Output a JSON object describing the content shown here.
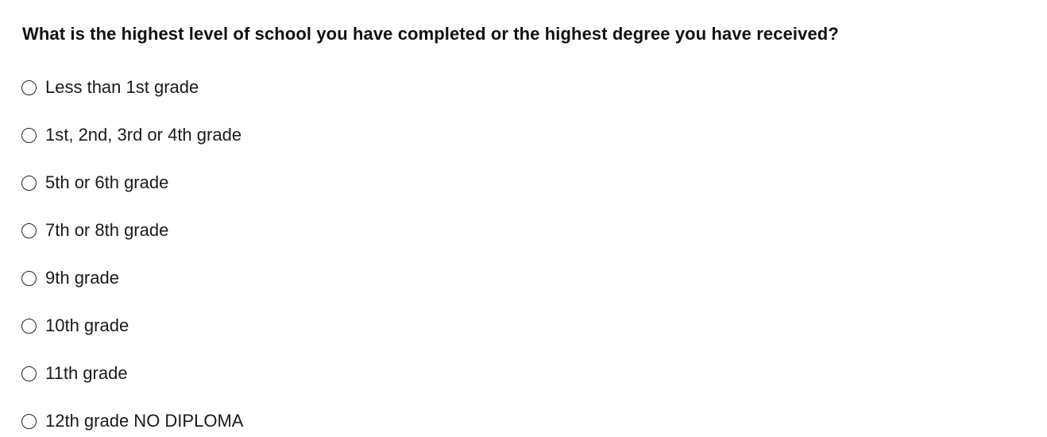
{
  "question": "What is the highest level of school you have completed or the highest degree you have received?",
  "options": [
    {
      "label": "Less than 1st grade",
      "selected": false
    },
    {
      "label": "1st, 2nd, 3rd or 4th grade",
      "selected": false
    },
    {
      "label": "5th or 6th grade",
      "selected": false
    },
    {
      "label": "7th or 8th grade",
      "selected": false
    },
    {
      "label": "9th grade",
      "selected": false
    },
    {
      "label": "10th grade",
      "selected": false
    },
    {
      "label": "11th grade",
      "selected": false
    },
    {
      "label": "12th grade NO DIPLOMA",
      "selected": false
    }
  ]
}
